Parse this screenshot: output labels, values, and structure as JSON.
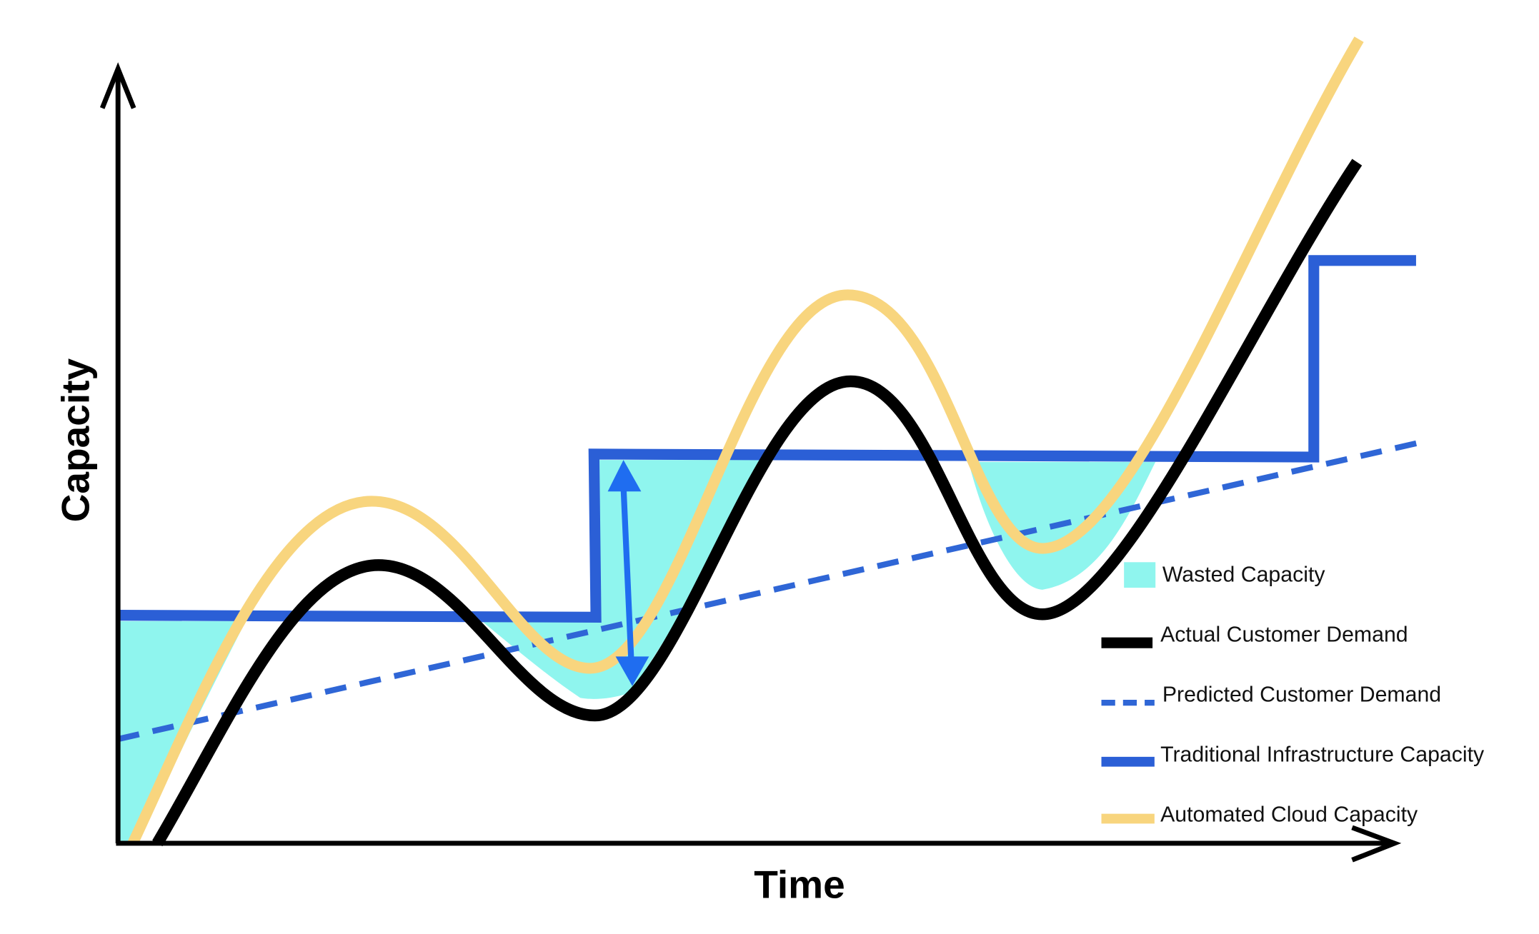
{
  "axes": {
    "y_label": "Capacity",
    "x_label": "Time"
  },
  "legend": {
    "items": [
      "Wasted Capacity",
      "Actual Customer Demand",
      "Predicted Customer Demand",
      "Traditional Infrastructure Capacity",
      "Automated Cloud Capacity"
    ]
  }
}
